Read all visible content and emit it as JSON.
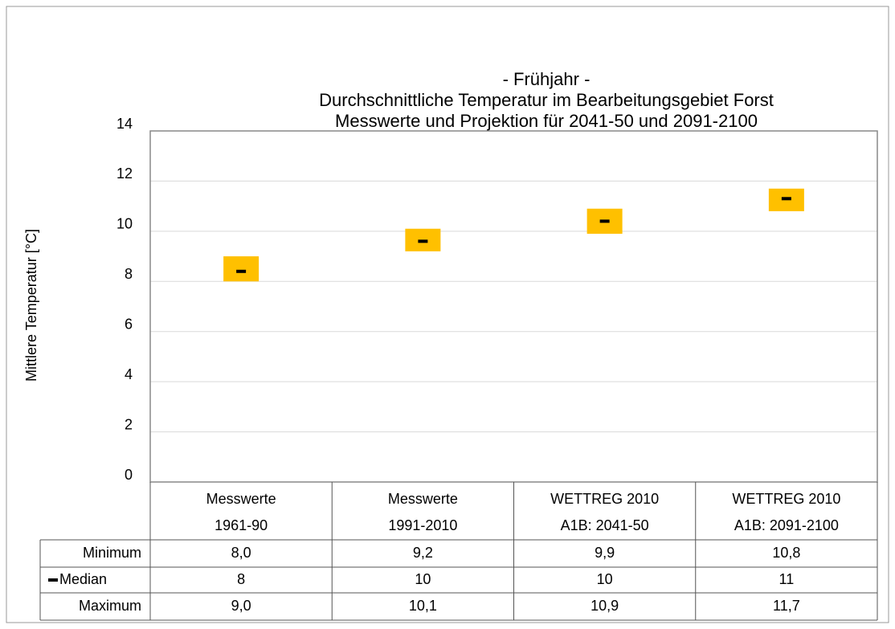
{
  "chart_data": {
    "type": "floating-bar",
    "title": [
      "- Frühjahr -",
      "Durchschnittliche Temperatur im Bearbeitungsgebiet Forst",
      "Messwerte und Projektion für 2041-50 und 2091-2100"
    ],
    "y_label": "Mittlere Temperatur  [°C]",
    "categories": [
      [
        "Messwerte",
        "1961-90"
      ],
      [
        "Messwerte",
        "1991-2010"
      ],
      [
        "WETTREG 2010",
        "A1B: 2041-50"
      ],
      [
        "WETTREG 2010",
        "A1B: 2091-2100"
      ]
    ],
    "series": [
      {
        "name": "Minimum",
        "values": [
          8.0,
          9.2,
          9.9,
          10.8
        ],
        "value_labels": [
          "8,0",
          "9,2",
          "9,9",
          "10,8"
        ]
      },
      {
        "name": "Median",
        "color": "#000000",
        "values": [
          8.4,
          9.6,
          10.4,
          11.3
        ],
        "value_labels": [
          "8",
          "10",
          "10",
          "11"
        ]
      },
      {
        "name": "Maximum",
        "values": [
          9.0,
          10.1,
          10.9,
          11.7
        ],
        "value_labels": [
          "9,0",
          "10,1",
          "10,9",
          "11,7"
        ]
      }
    ],
    "bar_color": "#ffc000",
    "ylim": [
      0,
      14
    ],
    "yticks": [
      0,
      2,
      4,
      6,
      8,
      10,
      12,
      14
    ],
    "grid": true
  }
}
